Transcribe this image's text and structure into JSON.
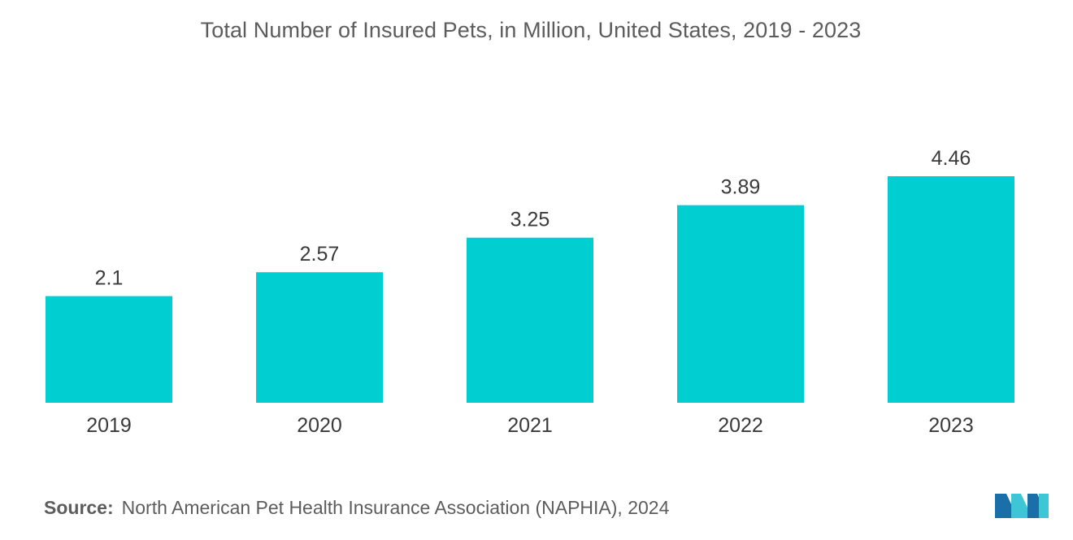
{
  "chart_data": {
    "type": "bar",
    "title": "Total Number of Insured Pets, in Million, United States, 2019 - 2023",
    "categories": [
      "2019",
      "2020",
      "2021",
      "2022",
      "2023"
    ],
    "values": [
      2.1,
      2.57,
      3.25,
      3.89,
      4.46
    ],
    "value_labels": [
      "2.1",
      "2.57",
      "3.25",
      "3.89",
      "4.46"
    ],
    "xlabel": "",
    "ylabel": "",
    "ylim": [
      0,
      4.46
    ],
    "grid": false,
    "legend": "none",
    "bar_color": "#00CED1"
  },
  "source": {
    "label": "Source:",
    "text": "North American Pet Health Insurance Association (NAPHIA), 2024"
  },
  "logo": {
    "icon": "mordor-intelligence-logo",
    "colors": [
      "#1B6FA8",
      "#3FC6D6"
    ]
  }
}
